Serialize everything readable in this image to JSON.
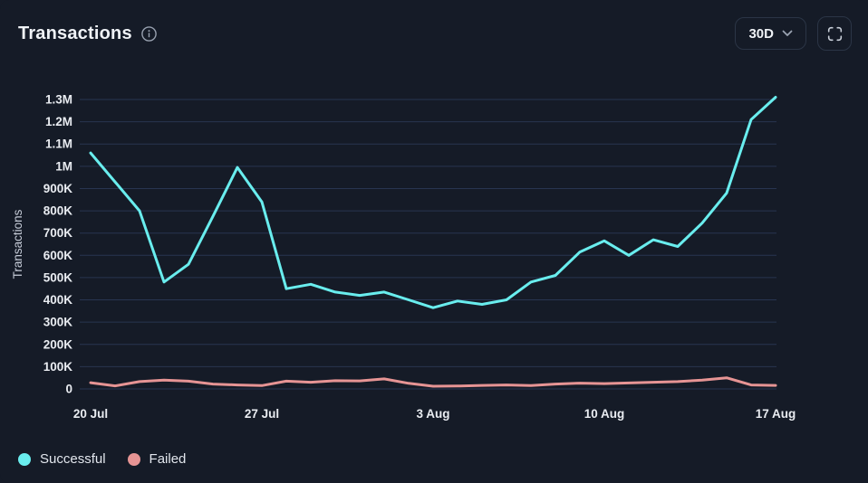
{
  "header": {
    "title": "Transactions",
    "info_icon": "info-circle",
    "range_selector": {
      "value": "30D",
      "chevron_icon": "chevron-down"
    },
    "fullscreen_icon": "fullscreen-expand"
  },
  "colors": {
    "bg": "#151B27",
    "border": "#2B3546",
    "grid": "#283550",
    "title": "#EFF2F6",
    "tick": "#E9ECF1",
    "muted": "#C6CCD8",
    "icon": "#98A1B0",
    "successful": "#69EDEE",
    "failed": "#E69494"
  },
  "chart_data": {
    "type": "line",
    "title": "Transactions",
    "ylabel": "Transactions",
    "grid": "horizontal-only",
    "legend_position": "bottom-left",
    "ylim": [
      0,
      1300000
    ],
    "x": [
      "20 Jul",
      "21 Jul",
      "22 Jul",
      "23 Jul",
      "24 Jul",
      "25 Jul",
      "26 Jul",
      "27 Jul",
      "28 Jul",
      "29 Jul",
      "30 Jul",
      "31 Jul",
      "1 Aug",
      "2 Aug",
      "3 Aug",
      "4 Aug",
      "5 Aug",
      "6 Aug",
      "7 Aug",
      "8 Aug",
      "9 Aug",
      "10 Aug",
      "11 Aug",
      "12 Aug",
      "13 Aug",
      "14 Aug",
      "15 Aug",
      "16 Aug",
      "17 Aug"
    ],
    "x_tick_labels": [
      "20 Jul",
      "27 Jul",
      "3 Aug",
      "10 Aug",
      "17 Aug"
    ],
    "x_tick_indices": [
      0,
      7,
      14,
      21,
      28
    ],
    "y_ticks": [
      {
        "label": "0",
        "value": 0
      },
      {
        "label": "100K",
        "value": 100000
      },
      {
        "label": "200K",
        "value": 200000
      },
      {
        "label": "300K",
        "value": 300000
      },
      {
        "label": "400K",
        "value": 400000
      },
      {
        "label": "500K",
        "value": 500000
      },
      {
        "label": "600K",
        "value": 600000
      },
      {
        "label": "700K",
        "value": 700000
      },
      {
        "label": "800K",
        "value": 800000
      },
      {
        "label": "900K",
        "value": 900000
      },
      {
        "label": "1M",
        "value": 1000000
      },
      {
        "label": "1.1M",
        "value": 1100000
      },
      {
        "label": "1.2M",
        "value": 1200000
      },
      {
        "label": "1.3M",
        "value": 1300000
      }
    ],
    "series": [
      {
        "name": "Successful",
        "color": "#69EDEE",
        "values": [
          1060000,
          930000,
          800000,
          480000,
          560000,
          775000,
          995000,
          840000,
          450000,
          470000,
          435000,
          420000,
          435000,
          400000,
          365000,
          395000,
          380000,
          400000,
          480000,
          510000,
          615000,
          665000,
          600000,
          670000,
          640000,
          745000,
          880000,
          1210000,
          1310000
        ]
      },
      {
        "name": "Failed",
        "color": "#E69494",
        "values": [
          28000,
          14000,
          33000,
          40000,
          35000,
          22000,
          18000,
          15000,
          35000,
          30000,
          37000,
          36000,
          45000,
          25000,
          12000,
          13000,
          16000,
          18000,
          15000,
          22000,
          26000,
          24000,
          27000,
          30000,
          33000,
          40000,
          50000,
          18000,
          16000
        ]
      }
    ]
  },
  "legend": {
    "items": [
      {
        "label": "Successful",
        "color": "#69EDEE"
      },
      {
        "label": "Failed",
        "color": "#E69494"
      }
    ]
  }
}
